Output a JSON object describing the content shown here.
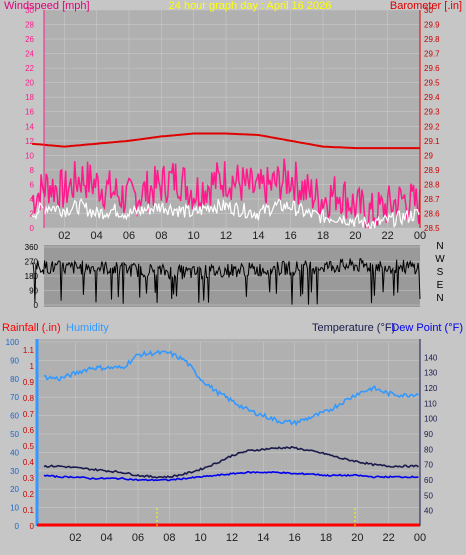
{
  "header": {
    "wind_label": "Windspeed [mph]",
    "title": "24 hour graph day : April 16 2026",
    "baro_label": "Barometer [.in]"
  },
  "direction_letters": [
    "N",
    "W",
    "S",
    "E",
    "N"
  ],
  "lower_header": {
    "rain_label": "Rainfall (.in)",
    "humidity_label": "Humidity",
    "temp_label": "Temperature (°F)",
    "dew_label": "Dew Point (°F)"
  },
  "colors": {
    "background": "#c6c6c6",
    "plot_bg": "#b0b0b0",
    "wind": "#ff1a8c",
    "gust": "#ffffff",
    "barometer": "#e00000",
    "direction": "#000000",
    "humidity": "#3399ff",
    "temperature": "#1a1a4d",
    "dew_point": "#0000ee",
    "rain": "#ff0000",
    "title": "#ffff00"
  },
  "chart_data": [
    {
      "type": "line",
      "xticks": [
        "02",
        "04",
        "06",
        "08",
        "10",
        "12",
        "14",
        "16",
        "18",
        "20",
        "22",
        "00"
      ],
      "xlim": [
        0,
        24
      ],
      "ylim_left": [
        0,
        30
      ],
      "yticks_left": [
        "0",
        "2",
        "4",
        "6",
        "8",
        "10",
        "12",
        "14",
        "16",
        "18",
        "20",
        "22",
        "24",
        "26",
        "28",
        "30"
      ],
      "ylim_right": [
        28.5,
        30
      ],
      "yticks_right": [
        "28.5",
        "28.6",
        "28.7",
        "28.8",
        "28.9",
        "29",
        "29.1",
        "29.2",
        "29.3",
        "29.4",
        "29.5",
        "29.6",
        "29.7",
        "29.8",
        "29.9",
        "30"
      ],
      "series": [
        {
          "key": "wind",
          "x": [
            0,
            1,
            2,
            3,
            4,
            5,
            6,
            7,
            8,
            9,
            10,
            11,
            12,
            13,
            14,
            15,
            16,
            17,
            18,
            19,
            20,
            21,
            22,
            23,
            24
          ],
          "values": [
            4,
            6,
            5,
            7,
            6,
            5,
            4,
            5,
            6,
            7,
            5,
            6,
            7,
            6,
            5,
            6,
            7,
            5,
            4,
            5,
            3,
            2,
            3,
            4,
            3
          ]
        },
        {
          "key": "gust",
          "x": [
            0,
            1,
            2,
            3,
            4,
            5,
            6,
            7,
            8,
            9,
            10,
            11,
            12,
            13,
            14,
            15,
            16,
            17,
            18,
            19,
            20,
            21,
            22,
            23,
            24
          ],
          "values": [
            2,
            3,
            2.5,
            3,
            2,
            2.5,
            2,
            2.5,
            3,
            2.5,
            2,
            3,
            3,
            2.5,
            2,
            3,
            3,
            2,
            1.5,
            1.5,
            1,
            0.5,
            1,
            1.5,
            2
          ]
        },
        {
          "key": "barometer",
          "x": [
            0,
            2,
            4,
            6,
            8,
            10,
            12,
            14,
            16,
            18,
            20,
            22,
            24
          ],
          "values": [
            29.08,
            29.06,
            29.08,
            29.1,
            29.13,
            29.15,
            29.15,
            29.14,
            29.1,
            29.06,
            29.05,
            29.05,
            29.05
          ]
        }
      ]
    },
    {
      "type": "line",
      "yticks": [
        "0",
        "90",
        "180",
        "270",
        "360"
      ],
      "ylim": [
        0,
        360
      ],
      "series": [
        {
          "key": "direction",
          "x": [
            0,
            2,
            4,
            6,
            8,
            10,
            12,
            14,
            16,
            18,
            20,
            22,
            24
          ],
          "values": [
            240,
            230,
            235,
            220,
            210,
            200,
            215,
            220,
            230,
            240,
            245,
            240,
            235
          ]
        }
      ]
    },
    {
      "type": "line",
      "xticks": [
        "02",
        "04",
        "06",
        "08",
        "10",
        "12",
        "14",
        "16",
        "18",
        "20",
        "22",
        "00"
      ],
      "xlim": [
        0,
        24
      ],
      "ylim_humidity": [
        0,
        100
      ],
      "yticks_humidity": [
        "0",
        "10",
        "20",
        "30",
        "40",
        "50",
        "60",
        "70",
        "80",
        "90",
        "100"
      ],
      "ylim_rain": [
        0,
        1.15
      ],
      "yticks_rain": [
        "0",
        "0.1",
        "0.2",
        "0.3",
        "0.4",
        "0.5",
        "0.6",
        "0.7",
        "0.8",
        "0.9",
        "1",
        "1.1"
      ],
      "ylim_temp": [
        30,
        150
      ],
      "yticks_temp": [
        "40",
        "50",
        "60",
        "70",
        "80",
        "90",
        "100",
        "110",
        "120",
        "130",
        "140"
      ],
      "series": [
        {
          "key": "humidity",
          "x": [
            0,
            1,
            2,
            3,
            4,
            5,
            6,
            7,
            8,
            9,
            10,
            11,
            12,
            13,
            14,
            15,
            16,
            17,
            18,
            19,
            20,
            21,
            22,
            23,
            24
          ],
          "values": [
            81,
            80,
            83,
            86,
            86,
            86,
            93,
            94,
            94,
            90,
            80,
            73,
            68,
            63,
            60,
            57,
            56,
            59,
            62,
            67,
            72,
            75,
            72,
            71,
            72
          ]
        },
        {
          "key": "temperature",
          "x": [
            0,
            1,
            2,
            3,
            4,
            5,
            6,
            7,
            8,
            9,
            10,
            11,
            12,
            13,
            14,
            15,
            16,
            17,
            18,
            19,
            20,
            21,
            22,
            23,
            24
          ],
          "values": [
            69,
            69,
            68,
            67,
            66,
            65,
            63,
            62,
            62,
            64,
            67,
            71,
            76,
            79,
            80,
            81,
            81,
            79,
            77,
            74,
            72,
            70,
            69,
            69,
            69
          ]
        },
        {
          "key": "dew_point",
          "x": [
            0,
            1,
            2,
            3,
            4,
            5,
            6,
            7,
            8,
            9,
            10,
            11,
            12,
            13,
            14,
            15,
            16,
            17,
            18,
            19,
            20,
            21,
            22,
            23,
            24
          ],
          "values": [
            63,
            62,
            62,
            61,
            61,
            61,
            60,
            60,
            60,
            61,
            62,
            63,
            64,
            65,
            65,
            65,
            64,
            64,
            63,
            63,
            63,
            62,
            62,
            62,
            62
          ]
        },
        {
          "key": "rain",
          "x": [
            0,
            24
          ],
          "values": [
            0,
            0
          ]
        }
      ]
    }
  ]
}
